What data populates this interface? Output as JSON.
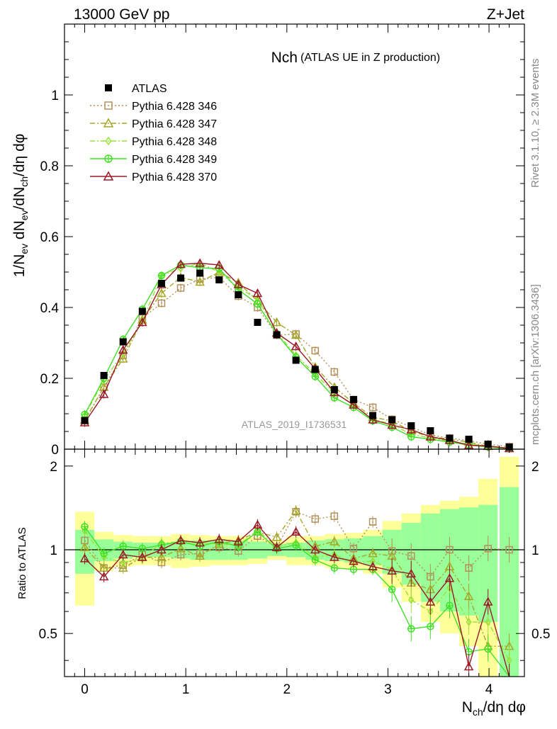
{
  "header": {
    "energy_label": "13000 GeV pp",
    "process_label": "Z+Jet",
    "side_rivet": "Rivet 3.1.10, ≥ 2.3M events",
    "side_mcplots": "mcplots.cern.ch [arXiv:1306.3436]",
    "watermark": "ATLAS_2019_I1736531"
  },
  "chart_data": {
    "type": "line",
    "title": "Nch",
    "subtitle": "(ATLAS UE in Z production)",
    "xlabel": "N_ch/dη dφ",
    "ylabel": "1/N_ev dN_ev/dN_ch/dη dφ",
    "xlim": [
      -0.2,
      4.35
    ],
    "ylim": [
      0,
      1.2
    ],
    "yticks": [
      0,
      0.2,
      0.4,
      0.6,
      0.8,
      1
    ],
    "ytick_labels": [
      "0",
      "0.2",
      "0.4",
      "0.6",
      "0.8",
      "1"
    ],
    "xticks": [
      0,
      1,
      2,
      3,
      4
    ],
    "xtick_labels": [
      "0",
      "1",
      "2",
      "3",
      "4"
    ],
    "x": [
      0.0,
      0.19,
      0.38,
      0.57,
      0.76,
      0.95,
      1.14,
      1.33,
      1.52,
      1.71,
      1.9,
      2.09,
      2.28,
      2.47,
      2.66,
      2.85,
      3.04,
      3.23,
      3.42,
      3.61,
      3.8,
      3.99,
      4.2
    ],
    "data_series": {
      "name": "ATLAS",
      "values": [
        0.081,
        0.208,
        0.303,
        0.389,
        0.468,
        0.483,
        0.497,
        0.478,
        0.436,
        0.358,
        0.323,
        0.251,
        0.225,
        0.168,
        0.14,
        0.095,
        0.083,
        0.066,
        0.052,
        0.031,
        0.028,
        0.014,
        0.006
      ]
    },
    "series": [
      {
        "name": "Pythia 6.428 346",
        "color": "#b38f5a",
        "marker": "square",
        "dash": "2,3",
        "values": [
          0.08,
          0.175,
          0.265,
          0.37,
          0.412,
          0.455,
          0.48,
          0.485,
          0.432,
          0.4,
          0.322,
          0.325,
          0.278,
          0.218,
          0.14,
          0.118,
          0.084,
          0.063,
          0.04,
          0.031,
          0.024,
          0.014,
          0.007
        ]
      },
      {
        "name": "Pythia 6.428 347",
        "color": "#a6a626",
        "marker": "triangle",
        "dash": "7,3,2,3",
        "values": [
          0.082,
          0.175,
          0.255,
          0.365,
          0.44,
          0.485,
          0.472,
          0.5,
          0.47,
          0.418,
          0.358,
          0.322,
          0.232,
          0.175,
          0.13,
          0.09,
          0.08,
          0.05,
          0.036,
          0.028,
          0.02,
          0.008,
          0.003
        ]
      },
      {
        "name": "Pythia 6.428 348",
        "color": "#99e036",
        "marker": "diamond",
        "dash": "7,3,2,3",
        "values": [
          0.095,
          0.195,
          0.27,
          0.363,
          0.49,
          0.51,
          0.525,
          0.5,
          0.455,
          0.425,
          0.33,
          0.265,
          0.212,
          0.16,
          0.125,
          0.085,
          0.07,
          0.042,
          0.032,
          0.022,
          0.015,
          0.008,
          0.003
        ]
      },
      {
        "name": "Pythia 6.428 349",
        "color": "#40e026",
        "marker": "circle-cross",
        "dash": "",
        "values": [
          0.098,
          0.2,
          0.31,
          0.395,
          0.49,
          0.52,
          0.512,
          0.51,
          0.45,
          0.41,
          0.325,
          0.26,
          0.205,
          0.145,
          0.118,
          0.08,
          0.062,
          0.035,
          0.028,
          0.02,
          0.012,
          0.006,
          0.002
        ]
      },
      {
        "name": "Pythia 6.428 370",
        "color": "#991a26",
        "marker": "triangle",
        "dash": "",
        "values": [
          0.075,
          0.155,
          0.28,
          0.358,
          0.465,
          0.522,
          0.525,
          0.52,
          0.465,
          0.44,
          0.328,
          0.29,
          0.227,
          0.16,
          0.125,
          0.083,
          0.068,
          0.055,
          0.035,
          0.025,
          0.011,
          0.009,
          0.002
        ]
      }
    ],
    "ratio": {
      "ylabel": "Ratio to ATLAS",
      "ylim": [
        0.35,
        2.3
      ],
      "yticks": [
        0.5,
        1,
        2
      ],
      "ytick_labels": [
        "0.5",
        "1",
        "2"
      ],
      "band_inner_halfwidth": [
        0.18,
        0.09,
        0.07,
        0.06,
        0.06,
        0.07,
        0.08,
        0.08,
        0.08,
        0.07,
        0.05,
        0.06,
        0.08,
        0.09,
        0.1,
        0.12,
        0.18,
        0.25,
        0.35,
        0.4,
        0.42,
        0.45,
        0.68
      ],
      "band_outer_halfwidth": [
        0.37,
        0.16,
        0.13,
        0.12,
        0.12,
        0.14,
        0.13,
        0.12,
        0.12,
        0.11,
        0.08,
        0.12,
        0.12,
        0.14,
        0.15,
        0.18,
        0.27,
        0.35,
        0.45,
        0.5,
        0.55,
        0.8,
        1.16
      ],
      "series": [
        {
          "name": "Pythia 6.428 346",
          "values": [
            1.08,
            0.86,
            0.88,
            0.96,
            0.9,
            0.96,
            0.97,
            1.02,
            0.99,
            1.12,
            1.02,
            1.37,
            1.29,
            1.32,
            1.01,
            1.26,
            0.99,
            0.95,
            0.8,
            1.0,
            0.86,
            1.01,
            1.0
          ]
        },
        {
          "name": "Pythia 6.428 347",
          "values": [
            1.02,
            0.86,
            0.86,
            0.94,
            0.94,
            1.01,
            0.95,
            1.05,
            1.08,
            1.16,
            1.11,
            1.38,
            1.03,
            1.07,
            0.93,
            0.97,
            0.95,
            0.76,
            0.72,
            0.87,
            0.68,
            0.45,
            0.45
          ]
        },
        {
          "name": "Pythia 6.428 348",
          "values": [
            1.17,
            0.94,
            0.9,
            0.93,
            1.06,
            1.06,
            1.06,
            1.05,
            1.04,
            1.17,
            1.03,
            1.06,
            0.94,
            0.96,
            0.9,
            0.91,
            0.85,
            0.66,
            0.6,
            0.73,
            0.55,
            0.55,
            0.4
          ]
        },
        {
          "name": "Pythia 6.428 349",
          "values": [
            1.21,
            0.97,
            1.03,
            1.01,
            1.04,
            1.07,
            1.03,
            1.07,
            1.03,
            1.16,
            1.01,
            1.04,
            0.92,
            0.86,
            0.85,
            0.85,
            0.72,
            0.52,
            0.53,
            0.63,
            0.43,
            0.44,
            0.34
          ]
        },
        {
          "name": "Pythia 6.428 370",
          "values": [
            0.93,
            0.8,
            0.96,
            0.94,
            1.0,
            1.08,
            1.06,
            1.09,
            1.07,
            1.23,
            1.02,
            1.16,
            1.0,
            0.94,
            0.91,
            0.87,
            0.84,
            0.82,
            0.65,
            0.79,
            0.38,
            0.65,
            0.33
          ]
        }
      ]
    }
  }
}
